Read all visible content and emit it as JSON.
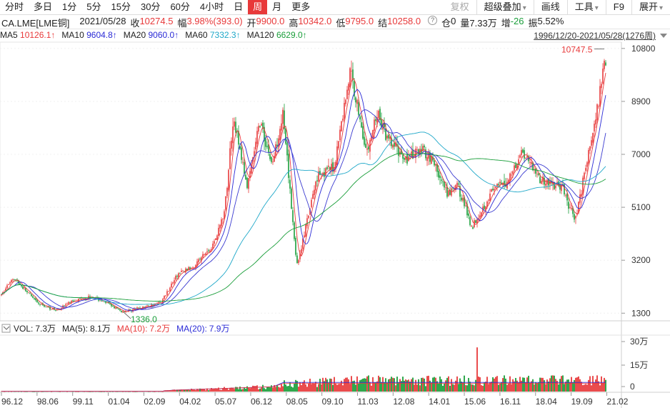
{
  "periods": {
    "tabs": [
      {
        "label": "分时",
        "active": false
      },
      {
        "label": "多日",
        "active": false
      },
      {
        "label": "1分",
        "active": false
      },
      {
        "label": "5分",
        "active": false
      },
      {
        "label": "15分",
        "active": false
      },
      {
        "label": "30分",
        "active": false
      },
      {
        "label": "60分",
        "active": false
      },
      {
        "label": "4小时",
        "active": false
      },
      {
        "label": "日",
        "active": false
      },
      {
        "label": "周",
        "active": true
      },
      {
        "label": "月",
        "active": false
      },
      {
        "label": "更多",
        "active": false
      }
    ]
  },
  "toolbar": {
    "restore": "复权",
    "overlay": "超级叠加",
    "draw": "画线",
    "tools": "工具",
    "f9": "F9",
    "expand": "展开"
  },
  "quote": {
    "symbol": "CA.LME[LME铜]",
    "date": "2021/05/28",
    "close_label": "收",
    "close": "10274.5",
    "change_label": "幅",
    "change": "3.98%(393.0)",
    "open_label": "开",
    "open": "9900.0",
    "high_label": "高",
    "high": "10342.0",
    "low_label": "低",
    "low": "9795.0",
    "settle_label": "结",
    "settle": "10258.0",
    "oi_label": "仓",
    "oi": "0",
    "vol_label": "量",
    "vol": "7.33万",
    "inc_label": "增",
    "inc": "-26",
    "amp_label": "振",
    "amp": "5.52%",
    "range": "1996/12/20-2021/05/28(1276周)"
  },
  "ma_legend": [
    {
      "label": "MA5",
      "value": "10126.1",
      "color": "#e8393a"
    },
    {
      "label": "MA10",
      "value": "9604.8",
      "color": "#2b2bd6"
    },
    {
      "label": "MA20",
      "value": "9060.0",
      "color": "#2b2bd6"
    },
    {
      "label": "MA60",
      "value": "7332.3",
      "color": "#1fa8c9"
    },
    {
      "label": "MA120",
      "value": "6629.0",
      "color": "#1a9e3a"
    }
  ],
  "vol_legend": [
    {
      "label": "VOL:",
      "value": "7.3万",
      "color": "#222"
    },
    {
      "label": "MA(5):",
      "value": "8.1万",
      "color": "#222"
    },
    {
      "label": "MA(10):",
      "value": "7.2万",
      "color": "#e8393a"
    },
    {
      "label": "MA(20):",
      "value": "7.9万",
      "color": "#2b2bd6"
    }
  ],
  "chart_data": {
    "type": "candlestick",
    "title": "CA.LME[LME铜] 周K",
    "y_axis": {
      "ticks": [
        "10800",
        "8900",
        "7000",
        "5100",
        "3200",
        "1300"
      ],
      "ylim": [
        1000,
        11000
      ]
    },
    "vol_axis": {
      "ticks": [
        "30万",
        "15万",
        "0"
      ],
      "ylim": [
        0,
        300000
      ]
    },
    "x_ticks": [
      "96.12",
      "98.06",
      "99.11",
      "01.04",
      "02.09",
      "04.02",
      "05.07",
      "06.12",
      "08.05",
      "09.10",
      "11.03",
      "12.08",
      "14.01",
      "15.06",
      "16.11",
      "18.04",
      "19.09",
      "21.02"
    ],
    "annotations": {
      "max": "10747.5",
      "min": "1336.0"
    },
    "price_path": [
      [
        "96.12",
        1900
      ],
      [
        "97.06",
        2600
      ],
      [
        "98.06",
        1650
      ],
      [
        "99.03",
        1400
      ],
      [
        "99.11",
        1750
      ],
      [
        "00.08",
        1900
      ],
      [
        "01.04",
        1650
      ],
      [
        "01.11",
        1350
      ],
      [
        "02.09",
        1500
      ],
      [
        "03.06",
        1700
      ],
      [
        "04.02",
        2700
      ],
      [
        "04.09",
        2950
      ],
      [
        "05.07",
        3700
      ],
      [
        "06.01",
        5000
      ],
      [
        "06.05",
        8400
      ],
      [
        "06.08",
        7200
      ],
      [
        "06.12",
        5800
      ],
      [
        "07.06",
        8200
      ],
      [
        "07.12",
        6600
      ],
      [
        "08.05",
        8500
      ],
      [
        "08.12",
        3000
      ],
      [
        "09.05",
        4600
      ],
      [
        "09.10",
        6300
      ],
      [
        "10.06",
        6500
      ],
      [
        "10.12",
        9200
      ],
      [
        "11.02",
        10000
      ],
      [
        "11.10",
        7000
      ],
      [
        "12.03",
        8500
      ],
      [
        "12.08",
        7500
      ],
      [
        "13.06",
        6800
      ],
      [
        "14.01",
        7200
      ],
      [
        "14.06",
        6800
      ],
      [
        "15.01",
        5500
      ],
      [
        "15.06",
        5900
      ],
      [
        "16.01",
        4400
      ],
      [
        "16.11",
        5700
      ],
      [
        "17.06",
        6000
      ],
      [
        "18.01",
        7100
      ],
      [
        "18.04",
        6900
      ],
      [
        "18.10",
        6100
      ],
      [
        "19.09",
        5800
      ],
      [
        "20.03",
        4600
      ],
      [
        "20.09",
        6800
      ],
      [
        "21.02",
        8600
      ],
      [
        "21.05",
        10274.5
      ]
    ]
  }
}
